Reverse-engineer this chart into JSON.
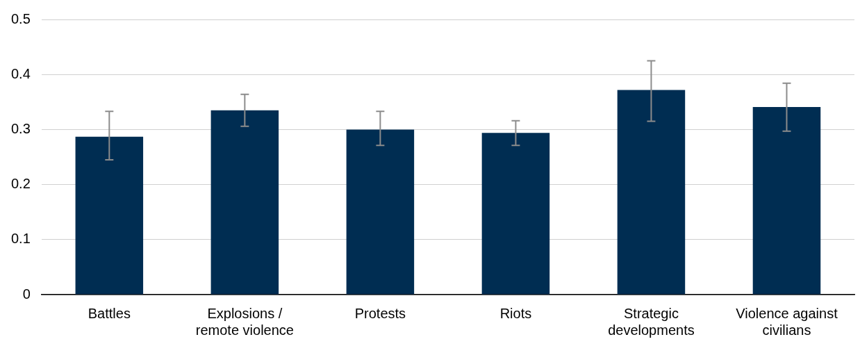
{
  "chart_data": {
    "type": "bar",
    "categories": [
      "Battles",
      "Explosions / remote violence",
      "Protests",
      "Riots",
      "Strategic developments",
      "Violence against civilians"
    ],
    "values": [
      0.287,
      0.335,
      0.3,
      0.294,
      0.372,
      0.341
    ],
    "errors": [
      [
        0.245,
        0.333
      ],
      [
        0.306,
        0.364
      ],
      [
        0.271,
        0.333
      ],
      [
        0.271,
        0.316
      ],
      [
        0.315,
        0.425
      ],
      [
        0.297,
        0.384
      ]
    ],
    "color": "#002d52",
    "ylim": [
      0,
      0.5
    ],
    "yticks": [
      0,
      0.1,
      0.2,
      0.3,
      0.4,
      0.5
    ],
    "grid": "y"
  }
}
